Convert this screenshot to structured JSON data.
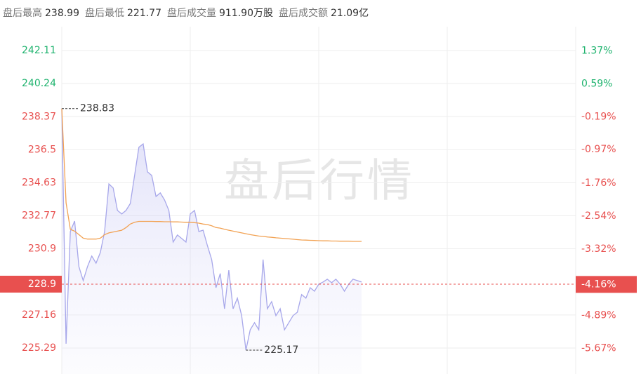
{
  "header": {
    "stats": [
      {
        "label": "盘后最高",
        "value": "238.99"
      },
      {
        "label": "盘后最低",
        "value": "221.77"
      },
      {
        "label": "盘后成交量",
        "value": "911.90万股"
      },
      {
        "label": "盘后成交额",
        "value": "21.09亿"
      }
    ]
  },
  "chart_data": {
    "type": "line",
    "watermark": "盘后行情",
    "xlim": [
      0,
      120
    ],
    "xgrid": [
      0,
      30,
      60,
      90,
      120
    ],
    "ylim": [
      223.82,
      243.46
    ],
    "yticks": [
      242.11,
      240.24,
      238.37,
      236.5,
      234.63,
      232.77,
      230.9,
      228.9,
      227.16,
      225.29
    ],
    "y2lim": [
      -6.28,
      1.94
    ],
    "y2ticks": [
      {
        "value": 1.37,
        "label": "1.37%"
      },
      {
        "value": 0.59,
        "label": "0.59%"
      },
      {
        "value": -0.19,
        "label": "-0.19%"
      },
      {
        "value": -0.97,
        "label": "-0.97%"
      },
      {
        "value": -1.76,
        "label": "-1.76%"
      },
      {
        "value": -2.54,
        "label": "-2.54%"
      },
      {
        "value": -3.32,
        "label": "-3.32%"
      },
      {
        "value": -4.16,
        "label": "-4.16%"
      },
      {
        "value": -4.89,
        "label": "-4.89%"
      },
      {
        "value": -5.67,
        "label": "-5.67%"
      }
    ],
    "ref_line": 228.9,
    "up_color": "#1fb36e",
    "down_color": "#e8504f",
    "grid": true,
    "annotations": [
      238.83,
      225.17
    ],
    "series": [
      {
        "color": "#a7a7ea",
        "area": true,
        "values": [
          238.83,
          225.53,
          231.88,
          232.47,
          229.89,
          229.1,
          229.89,
          230.49,
          230.09,
          230.69,
          231.88,
          234.57,
          234.34,
          233.07,
          232.87,
          233.07,
          233.46,
          235.05,
          236.64,
          236.83,
          235.25,
          235.05,
          233.86,
          234.06,
          233.66,
          233.07,
          231.28,
          231.68,
          231.48,
          231.28,
          232.87,
          233.07,
          231.88,
          231.95,
          231.08,
          230.29,
          228.7,
          229.5,
          227.51,
          229.69,
          227.51,
          228.11,
          227.12,
          225.17,
          226.32,
          226.72,
          226.32,
          230.29,
          227.51,
          227.91,
          227.12,
          227.51,
          226.32,
          226.72,
          227.12,
          227.31,
          228.31,
          228.11,
          228.7,
          228.5,
          228.9,
          229.02,
          229.18,
          228.98,
          229.18,
          228.9,
          228.5,
          228.9,
          229.18,
          229.1,
          229.02
        ]
      },
      {
        "color": "#f2a253",
        "area": false,
        "values": [
          238.83,
          233.5,
          232.0,
          231.9,
          231.7,
          231.5,
          231.45,
          231.45,
          231.45,
          231.5,
          231.7,
          231.8,
          231.85,
          231.9,
          231.95,
          232.1,
          232.3,
          232.4,
          232.45,
          232.45,
          232.45,
          232.45,
          232.44,
          232.44,
          232.43,
          232.43,
          232.42,
          232.42,
          232.41,
          232.4,
          232.4,
          232.38,
          232.35,
          232.3,
          232.27,
          232.2,
          232.1,
          232.07,
          232.0,
          231.95,
          231.9,
          231.85,
          231.8,
          231.75,
          231.7,
          231.66,
          231.62,
          231.6,
          231.57,
          231.55,
          231.52,
          231.5,
          231.48,
          231.46,
          231.44,
          231.42,
          231.4,
          231.39,
          231.38,
          231.37,
          231.36,
          231.35,
          231.35,
          231.34,
          231.34,
          231.33,
          231.33,
          231.33,
          231.32,
          231.32,
          231.32
        ]
      }
    ]
  }
}
